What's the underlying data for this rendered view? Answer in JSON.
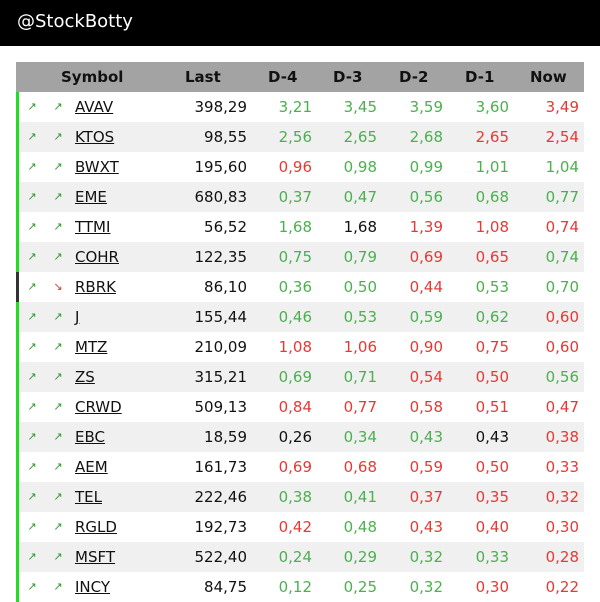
{
  "header": {
    "handle": "@StockBotty"
  },
  "colors": {
    "up": "#4caf50",
    "down": "#e53935",
    "neutral": "#111111",
    "bar_up": "#22dd22",
    "bar_down": "#333333",
    "arrow_up": "#2e9b2e",
    "arrow_down": "#e53935"
  },
  "table": {
    "columns": {
      "symbol": "Symbol",
      "last": "Last",
      "d4": "D-4",
      "d3": "D-3",
      "d2": "D-2",
      "d1": "D-1",
      "now": "Now"
    },
    "rows": [
      {
        "symbol": "AVAV",
        "last": "398,29",
        "trend": "up",
        "icon2": "up",
        "values": [
          [
            "3,21",
            "up"
          ],
          [
            "3,45",
            "up"
          ],
          [
            "3,59",
            "up"
          ],
          [
            "3,60",
            "up"
          ],
          [
            "3,49",
            "down"
          ]
        ]
      },
      {
        "symbol": "KTOS",
        "last": "98,55",
        "trend": "up",
        "icon2": "up",
        "values": [
          [
            "2,56",
            "up"
          ],
          [
            "2,65",
            "up"
          ],
          [
            "2,68",
            "up"
          ],
          [
            "2,65",
            "down"
          ],
          [
            "2,54",
            "down"
          ]
        ]
      },
      {
        "symbol": "BWXT",
        "last": "195,60",
        "trend": "up",
        "icon2": "up",
        "values": [
          [
            "0,96",
            "down"
          ],
          [
            "0,98",
            "up"
          ],
          [
            "0,99",
            "up"
          ],
          [
            "1,01",
            "up"
          ],
          [
            "1,04",
            "up"
          ]
        ]
      },
      {
        "symbol": "EME",
        "last": "680,83",
        "trend": "up",
        "icon2": "up",
        "values": [
          [
            "0,37",
            "up"
          ],
          [
            "0,47",
            "up"
          ],
          [
            "0,56",
            "up"
          ],
          [
            "0,68",
            "up"
          ],
          [
            "0,77",
            "up"
          ]
        ]
      },
      {
        "symbol": "TTMI",
        "last": "56,52",
        "trend": "up",
        "icon2": "up",
        "values": [
          [
            "1,68",
            "up"
          ],
          [
            "1,68",
            "neutral"
          ],
          [
            "1,39",
            "down"
          ],
          [
            "1,08",
            "down"
          ],
          [
            "0,74",
            "down"
          ]
        ]
      },
      {
        "symbol": "COHR",
        "last": "122,35",
        "trend": "up",
        "icon2": "up",
        "values": [
          [
            "0,75",
            "up"
          ],
          [
            "0,79",
            "up"
          ],
          [
            "0,69",
            "down"
          ],
          [
            "0,65",
            "down"
          ],
          [
            "0,74",
            "up"
          ]
        ]
      },
      {
        "symbol": "RBRK",
        "last": "86,10",
        "trend": "down",
        "icon2": "down",
        "values": [
          [
            "0,36",
            "up"
          ],
          [
            "0,50",
            "up"
          ],
          [
            "0,44",
            "down"
          ],
          [
            "0,53",
            "up"
          ],
          [
            "0,70",
            "up"
          ]
        ]
      },
      {
        "symbol": "J",
        "last": "155,44",
        "trend": "up",
        "icon2": "up",
        "values": [
          [
            "0,46",
            "up"
          ],
          [
            "0,53",
            "up"
          ],
          [
            "0,59",
            "up"
          ],
          [
            "0,62",
            "up"
          ],
          [
            "0,60",
            "down"
          ]
        ]
      },
      {
        "symbol": "MTZ",
        "last": "210,09",
        "trend": "up",
        "icon2": "up",
        "values": [
          [
            "1,08",
            "down"
          ],
          [
            "1,06",
            "down"
          ],
          [
            "0,90",
            "down"
          ],
          [
            "0,75",
            "down"
          ],
          [
            "0,60",
            "down"
          ]
        ]
      },
      {
        "symbol": "ZS",
        "last": "315,21",
        "trend": "up",
        "icon2": "up",
        "values": [
          [
            "0,69",
            "up"
          ],
          [
            "0,71",
            "up"
          ],
          [
            "0,54",
            "down"
          ],
          [
            "0,50",
            "down"
          ],
          [
            "0,56",
            "up"
          ]
        ]
      },
      {
        "symbol": "CRWD",
        "last": "509,13",
        "trend": "up",
        "icon2": "up",
        "values": [
          [
            "0,84",
            "down"
          ],
          [
            "0,77",
            "down"
          ],
          [
            "0,58",
            "down"
          ],
          [
            "0,51",
            "down"
          ],
          [
            "0,47",
            "down"
          ]
        ]
      },
      {
        "symbol": "EBC",
        "last": "18,59",
        "trend": "up",
        "icon2": "up",
        "values": [
          [
            "0,26",
            "neutral"
          ],
          [
            "0,34",
            "up"
          ],
          [
            "0,43",
            "up"
          ],
          [
            "0,43",
            "neutral"
          ],
          [
            "0,38",
            "down"
          ]
        ]
      },
      {
        "symbol": "AEM",
        "last": "161,73",
        "trend": "up",
        "icon2": "up",
        "values": [
          [
            "0,69",
            "down"
          ],
          [
            "0,68",
            "down"
          ],
          [
            "0,59",
            "down"
          ],
          [
            "0,50",
            "down"
          ],
          [
            "0,33",
            "down"
          ]
        ]
      },
      {
        "symbol": "TEL",
        "last": "222,46",
        "trend": "up",
        "icon2": "up",
        "values": [
          [
            "0,38",
            "up"
          ],
          [
            "0,41",
            "up"
          ],
          [
            "0,37",
            "down"
          ],
          [
            "0,35",
            "down"
          ],
          [
            "0,32",
            "down"
          ]
        ]
      },
      {
        "symbol": "RGLD",
        "last": "192,73",
        "trend": "up",
        "icon2": "up",
        "values": [
          [
            "0,42",
            "down"
          ],
          [
            "0,48",
            "up"
          ],
          [
            "0,43",
            "down"
          ],
          [
            "0,40",
            "down"
          ],
          [
            "0,30",
            "down"
          ]
        ]
      },
      {
        "symbol": "MSFT",
        "last": "522,40",
        "trend": "up",
        "icon2": "up",
        "values": [
          [
            "0,24",
            "up"
          ],
          [
            "0,29",
            "up"
          ],
          [
            "0,32",
            "up"
          ],
          [
            "0,33",
            "up"
          ],
          [
            "0,28",
            "down"
          ]
        ]
      },
      {
        "symbol": "INCY",
        "last": "84,75",
        "trend": "up",
        "icon2": "up",
        "values": [
          [
            "0,12",
            "up"
          ],
          [
            "0,25",
            "up"
          ],
          [
            "0,32",
            "up"
          ],
          [
            "0,30",
            "down"
          ],
          [
            "0,22",
            "down"
          ]
        ]
      }
    ]
  }
}
